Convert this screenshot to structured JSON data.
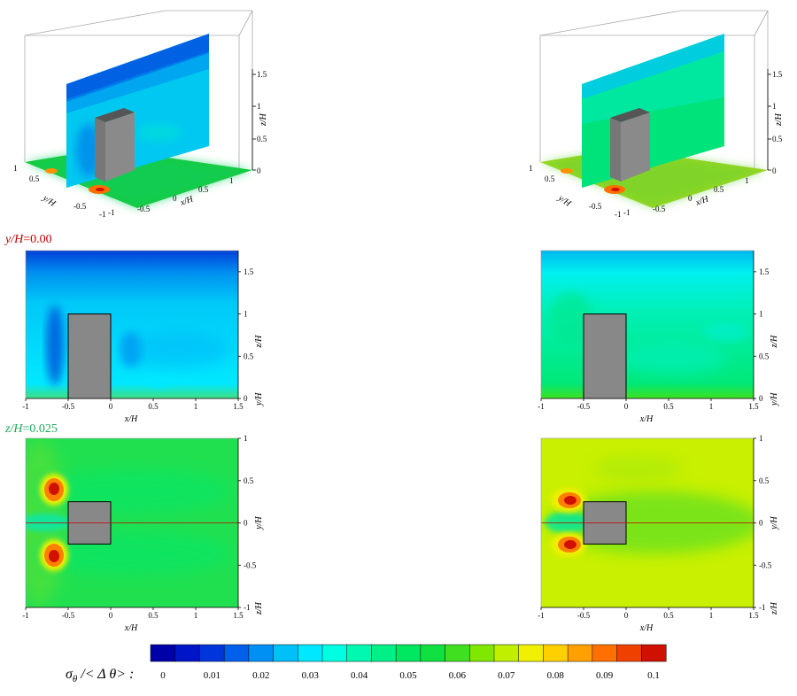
{
  "chart_data": [
    {
      "type": "heatmap",
      "panel": "3D view, left",
      "field": "sigma_theta / <delta theta>",
      "axes": {
        "x": "x/H",
        "y": "y/H",
        "z": "z/H"
      },
      "x_ticks": [
        "-1",
        "-0.5",
        "0",
        "0.5",
        "1"
      ],
      "y_ticks": [
        "1",
        "0.5",
        "0",
        "-0.5",
        "-1"
      ],
      "z_ticks": [
        "0",
        "0.5",
        "1",
        "1.5"
      ]
    },
    {
      "type": "heatmap",
      "panel": "3D view, right",
      "field": "sigma_theta / <delta theta>",
      "axes": {
        "x": "x/H",
        "y": "y/H",
        "z": "z/H"
      },
      "x_ticks": [
        "-1",
        "-0.5",
        "0",
        "0.5",
        "1"
      ],
      "y_ticks": [
        "1",
        "0.5",
        "0",
        "-0.5",
        "-1"
      ],
      "z_ticks": [
        "0",
        "0.5",
        "1",
        "1.5"
      ]
    },
    {
      "type": "heatmap",
      "panel": "vertical slice, left",
      "slice_label": {
        "var": "y/H",
        "value": "=0.00"
      },
      "xlabel": "x/H",
      "ylabel": "z/H",
      "corner_label": "y/H",
      "xlim": [
        -1,
        1.5
      ],
      "ylim": [
        0,
        1.75
      ],
      "x_ticks": [
        "-1",
        "-0.5",
        "0",
        "0.5",
        "1",
        "1.5"
      ],
      "y_ticks": [
        "0",
        "0.5",
        "1",
        "1.5"
      ],
      "obstacle": {
        "x": [
          -0.5,
          0
        ],
        "z": [
          0,
          1
        ]
      },
      "field_summary": {
        "wall_band": 0.04,
        "bulk": 0.02,
        "top": 0.0,
        "wake_min": 0.005
      }
    },
    {
      "type": "heatmap",
      "panel": "vertical slice, right",
      "xlabel": "x/H",
      "ylabel": "z/H",
      "corner_label": "y/H",
      "xlim": [
        -1,
        1.5
      ],
      "ylim": [
        0,
        1.75
      ],
      "x_ticks": [
        "-1",
        "-0.5",
        "0",
        "0.5",
        "1",
        "1.5"
      ],
      "y_ticks": [
        "0",
        "0.5",
        "1",
        "1.5"
      ],
      "obstacle": {
        "x": [
          -0.5,
          0
        ],
        "z": [
          0,
          1
        ]
      },
      "field_summary": {
        "wall_band": 0.05,
        "bulk": 0.035,
        "top": 0.015,
        "wake_min": 0.03
      }
    },
    {
      "type": "heatmap",
      "panel": "horizontal slice, left",
      "slice_label": {
        "var": "z/H",
        "value": "=0.025"
      },
      "xlabel": "x/H",
      "ylabel": "y/H",
      "corner_label": "z/H",
      "xlim": [
        -1,
        1.5
      ],
      "ylim": [
        -1,
        1
      ],
      "x_ticks": [
        "-1",
        "-0.5",
        "0",
        "0.5",
        "1",
        "1.5"
      ],
      "y_ticks": [
        "-1",
        "-0.5",
        "0",
        "0.5",
        "1"
      ],
      "obstacle": {
        "x": [
          -0.5,
          0
        ],
        "y": [
          -0.25,
          0.25
        ]
      },
      "field_summary": {
        "background": 0.055,
        "peak": 0.1,
        "peak_x": -0.65,
        "peak_y": [
          0.4,
          -0.4
        ]
      }
    },
    {
      "type": "heatmap",
      "panel": "horizontal slice, right",
      "xlabel": "x/H",
      "ylabel": "y/H",
      "corner_label": "z/H",
      "xlim": [
        -1,
        1.5
      ],
      "ylim": [
        -1,
        1
      ],
      "x_ticks": [
        "-1",
        "-0.5",
        "0",
        "0.5",
        "1",
        "1.5"
      ],
      "y_ticks": [
        "-1",
        "-0.5",
        "0",
        "0.5",
        "1"
      ],
      "obstacle": {
        "x": [
          -0.5,
          0
        ],
        "y": [
          -0.25,
          0.25
        ]
      },
      "field_summary": {
        "background": 0.068,
        "peak": 0.1,
        "peak_x": -0.65,
        "peak_y": [
          0.3,
          -0.3
        ]
      }
    },
    {
      "type": "colorbar",
      "label": {
        "sym": "σ",
        "sub": "θ",
        "rest": " /< Δ θ> :"
      },
      "range": [
        0,
        0.1
      ],
      "levels": 21,
      "tick_labels": [
        "0",
        "0.01",
        "0.02",
        "0.03",
        "0.04",
        "0.05",
        "0.06",
        "0.07",
        "0.08",
        "0.09",
        "0.1"
      ],
      "colors": [
        "#0000a8",
        "#0015c8",
        "#0035dc",
        "#0060ea",
        "#0090f4",
        "#00c0f8",
        "#00e8ff",
        "#00ffe0",
        "#00f8b0",
        "#00f088",
        "#00e860",
        "#10e040",
        "#40e020",
        "#80e800",
        "#c0f000",
        "#f0f000",
        "#ffd000",
        "#ffa000",
        "#ff7000",
        "#f04000",
        "#d01000"
      ]
    }
  ]
}
